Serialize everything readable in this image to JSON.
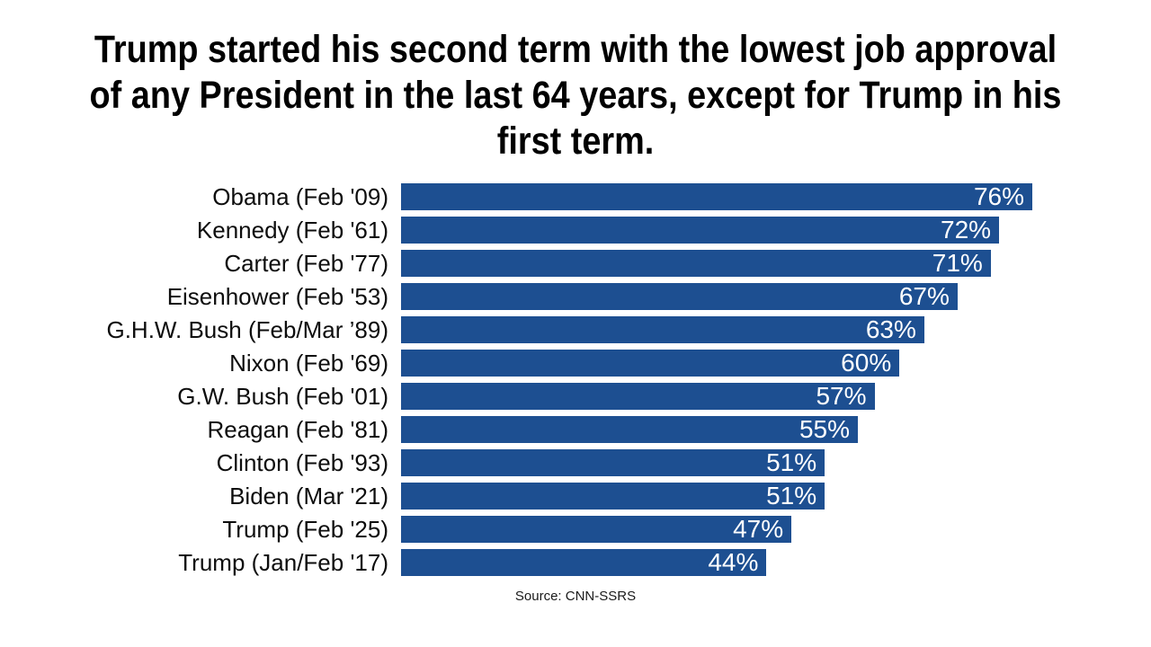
{
  "title": {
    "text": "Trump started his second term with the lowest job approval of any President in the last 64 years, except for Trump in his first term.",
    "lines": [
      "Trump started his second term with the lowest job approval",
      "of any President in the last 64 years, except for Trump in his",
      "first term."
    ]
  },
  "chart_data": {
    "type": "bar",
    "orientation": "horizontal",
    "title": "Trump started his second term with the lowest job approval of any President in the last 64 years, except for Trump in his first term.",
    "categories": [
      "Obama (Feb '09)",
      "Kennedy (Feb '61)",
      "Carter (Feb '77)",
      "Eisenhower (Feb '53)",
      "G.H.W. Bush (Feb/Mar ’89)",
      "Nixon (Feb '69)",
      "G.W. Bush (Feb '01)",
      "Reagan (Feb '81)",
      "Clinton (Feb '93)",
      "Biden (Mar '21)",
      "Trump (Feb '25)",
      "Trump (Jan/Feb '17)"
    ],
    "values": [
      76,
      72,
      71,
      67,
      63,
      60,
      57,
      55,
      51,
      51,
      47,
      44
    ],
    "value_labels": [
      "76%",
      "72%",
      "71%",
      "67%",
      "63%",
      "60%",
      "57%",
      "55%",
      "51%",
      "51%",
      "47%",
      "44%"
    ],
    "value_suffix": "%",
    "xlim": [
      0,
      76
    ],
    "grid": false,
    "legend": false,
    "bar_color": "#1D4F91",
    "value_text_color": "#FFFFFF",
    "label_text_color": "#0D0D0D",
    "source": "Source: CNN-SSRS"
  }
}
